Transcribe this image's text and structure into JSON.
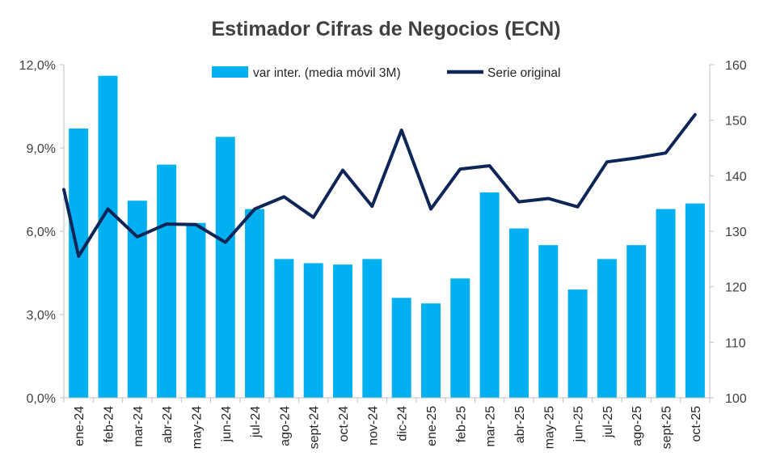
{
  "chart_data": {
    "type": "bar",
    "title": "Estimador Cifras de Negocios (ECN)",
    "categories": [
      "ene-24",
      "feb-24",
      "mar-24",
      "abr-24",
      "may-24",
      "jun-24",
      "jul-24",
      "ago-24",
      "sept-24",
      "oct-24",
      "nov-24",
      "dic-24",
      "ene-25",
      "feb-25",
      "mar-25",
      "abr-25",
      "may-25",
      "jun-25",
      "jul-25",
      "ago-25",
      "sept-25",
      "oct-25"
    ],
    "series": [
      {
        "name": "var inter. (media móvil 3M)",
        "type": "bar",
        "axis": "left",
        "color": "#00B0F0",
        "values": [
          9.7,
          11.6,
          7.1,
          8.4,
          6.3,
          9.4,
          6.8,
          5.0,
          4.85,
          4.8,
          5.0,
          3.6,
          3.4,
          4.3,
          7.4,
          6.1,
          5.5,
          3.9,
          5.0,
          5.5,
          6.8,
          7.0
        ]
      },
      {
        "name": "Serie original",
        "type": "line",
        "axis": "right",
        "color": "#0D2557",
        "start_value": 137.5,
        "values": [
          125.5,
          134.0,
          129.0,
          131.3,
          131.2,
          128.0,
          134.0,
          136.2,
          132.5,
          141.0,
          134.5,
          148.2,
          134.0,
          141.2,
          141.8,
          135.3,
          135.9,
          134.4,
          142.5,
          143.2,
          144.1,
          151.0
        ]
      }
    ],
    "left_axis": {
      "min": 0,
      "max": 12,
      "ticks": [
        "0,0%",
        "3,0%",
        "6,0%",
        "9,0%",
        "12,0%"
      ]
    },
    "right_axis": {
      "min": 100,
      "max": 160,
      "ticks": [
        "100",
        "110",
        "120",
        "130",
        "140",
        "150",
        "160"
      ]
    },
    "legend_position": "top",
    "grid": false
  }
}
